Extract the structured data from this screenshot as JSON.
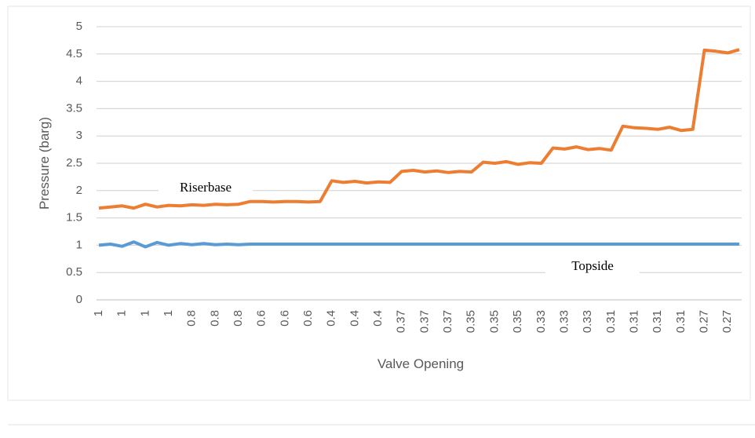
{
  "chart_data": {
    "type": "line",
    "x_label": "Valve Opening",
    "y_label": "Pressure (barg)",
    "categories": [
      "1",
      null,
      "1",
      null,
      "1",
      null,
      "1",
      null,
      "0.8",
      null,
      "0.8",
      null,
      "0.8",
      null,
      "0.6",
      null,
      "0.6",
      null,
      "0.6",
      null,
      "0.4",
      null,
      "0.4",
      null,
      "0.4",
      null,
      "0.37",
      null,
      "0.37",
      null,
      "0.37",
      null,
      "0.35",
      null,
      "0.35",
      null,
      "0.35",
      null,
      "0.33",
      null,
      "0.33",
      null,
      "0.33",
      null,
      "0.31",
      null,
      "0.31",
      null,
      "0.31",
      null,
      "0.31",
      null,
      "0.27",
      null,
      "0.27",
      null
    ],
    "series": [
      {
        "name": "Riserbase",
        "color": "#ed7d31",
        "values": [
          1.68,
          1.7,
          1.72,
          1.68,
          1.75,
          1.7,
          1.73,
          1.72,
          1.74,
          1.73,
          1.75,
          1.74,
          1.75,
          1.8,
          1.8,
          1.79,
          1.8,
          1.8,
          1.79,
          1.8,
          2.18,
          2.15,
          2.17,
          2.14,
          2.16,
          2.15,
          2.35,
          2.37,
          2.34,
          2.36,
          2.33,
          2.35,
          2.34,
          2.52,
          2.5,
          2.53,
          2.48,
          2.51,
          2.5,
          2.78,
          2.76,
          2.8,
          2.75,
          2.77,
          2.74,
          3.18,
          3.15,
          3.14,
          3.12,
          3.16,
          3.1,
          3.12,
          4.57,
          4.55,
          4.52,
          4.58
        ]
      },
      {
        "name": "Topside",
        "color": "#5b9bd5",
        "values": [
          1.0,
          1.02,
          0.98,
          1.06,
          0.97,
          1.05,
          1.0,
          1.03,
          1.01,
          1.03,
          1.01,
          1.02,
          1.01,
          1.02,
          1.02,
          1.02,
          1.02,
          1.02,
          1.02,
          1.02,
          1.02,
          1.02,
          1.02,
          1.02,
          1.02,
          1.02,
          1.02,
          1.02,
          1.02,
          1.02,
          1.02,
          1.02,
          1.02,
          1.02,
          1.02,
          1.02,
          1.02,
          1.02,
          1.02,
          1.02,
          1.02,
          1.02,
          1.02,
          1.02,
          1.02,
          1.02,
          1.02,
          1.02,
          1.02,
          1.02,
          1.02,
          1.02,
          1.02,
          1.02,
          1.02,
          1.02
        ]
      }
    ],
    "ylim": [
      0,
      5
    ],
    "yticks": [
      0,
      0.5,
      1,
      1.5,
      2,
      2.5,
      3,
      3.5,
      4,
      4.5,
      5
    ],
    "grid": true
  }
}
